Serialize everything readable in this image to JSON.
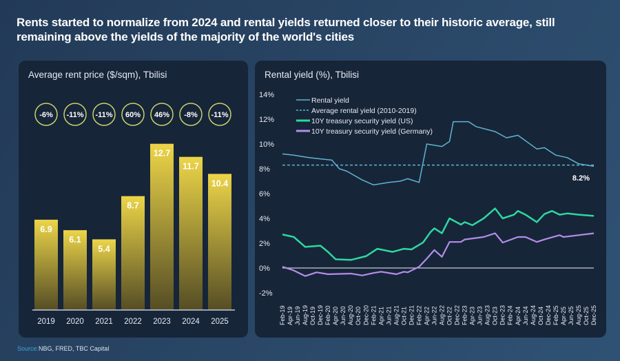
{
  "title": "Rents started to normalize from 2024 and rental yields returned closer to their historic average, still remaining above the yields of the majority of the world's cities",
  "source": {
    "label": "Source:",
    "text": "NBG, FRED, TBC Capital"
  },
  "colors": {
    "bar_top": "#ecd548",
    "bar_bottom": "#554d25",
    "badge_ring": "#c9d26a",
    "rental": "#5fb6d0",
    "us": "#2ed8a0",
    "germany": "#b48ee8",
    "zero_line": "#c8ccd4"
  },
  "chart_data": [
    {
      "type": "bar",
      "title": "Average rent price ($/sqm), Tbilisi",
      "categories": [
        "2019",
        "2020",
        "2021",
        "2022",
        "2023",
        "2024",
        "2025"
      ],
      "values": [
        6.9,
        6.1,
        5.4,
        8.7,
        12.7,
        11.7,
        10.4
      ],
      "value_labels": [
        "6.9",
        "6.1",
        "5.4",
        "8.7",
        "12.7",
        "11.7",
        "10.4"
      ],
      "change_badges": [
        "-6%",
        "-11%",
        "-11%",
        "60%",
        "46%",
        "-8%",
        "-11%"
      ]
    },
    {
      "type": "line",
      "title": "Rental yield (%), Tbilisi",
      "ylim": [
        -2,
        14
      ],
      "yticks": [
        "-2%",
        "0%",
        "2%",
        "4%",
        "6%",
        "8%",
        "10%",
        "12%",
        "14%"
      ],
      "xlim": [
        "2019-02",
        "2025-12"
      ],
      "xticks": [
        "Feb-19",
        "Apr-19",
        "Jun-19",
        "Aug-19",
        "Oct-19",
        "Dec-19",
        "Feb-20",
        "Apr-20",
        "Jun-20",
        "Aug-20",
        "Oct-20",
        "Dec-20",
        "Feb-21",
        "Apr-21",
        "Jun-21",
        "Aug-21",
        "Oct-21",
        "Dec-21",
        "Feb-22",
        "Apr-22",
        "Jun-22",
        "Aug-22",
        "Oct-22",
        "Dec-22",
        "Feb-23",
        "Apr-23",
        "Jun-23",
        "Aug-23",
        "Oct-23",
        "Dec-23",
        "Feb-24",
        "Apr-24",
        "Jun-24",
        "Aug-24",
        "Oct-24",
        "Dec-24",
        "Feb-25",
        "Apr-25",
        "Jun-25",
        "Aug-25",
        "Oct-25",
        "Dec-25"
      ],
      "legend_position": "top-left",
      "end_label": "8.2%",
      "series": [
        {
          "name": "Rental yield",
          "style": "solid",
          "points": [
            [
              "2019-02",
              9.2
            ],
            [
              "2019-05",
              9.1
            ],
            [
              "2019-09",
              8.9
            ],
            [
              "2019-12",
              8.8
            ],
            [
              "2020-03",
              8.7
            ],
            [
              "2020-05",
              8.0
            ],
            [
              "2020-07",
              7.8
            ],
            [
              "2020-11",
              7.1
            ],
            [
              "2021-02",
              6.7
            ],
            [
              "2021-06",
              6.9
            ],
            [
              "2021-09",
              7.0
            ],
            [
              "2021-11",
              7.2
            ],
            [
              "2022-02",
              6.9
            ],
            [
              "2022-04",
              10.0
            ],
            [
              "2022-08",
              9.8
            ],
            [
              "2022-10",
              10.2
            ],
            [
              "2022-11",
              11.8
            ],
            [
              "2023-03",
              11.8
            ],
            [
              "2023-05",
              11.4
            ],
            [
              "2023-10",
              11.0
            ],
            [
              "2024-01",
              10.5
            ],
            [
              "2024-04",
              10.7
            ],
            [
              "2024-09",
              9.6
            ],
            [
              "2024-11",
              9.7
            ],
            [
              "2025-02",
              9.1
            ],
            [
              "2025-05",
              8.9
            ],
            [
              "2025-08",
              8.4
            ],
            [
              "2025-12",
              8.2
            ]
          ]
        },
        {
          "name": "Average rental yield (2010-2019)",
          "style": "dashed",
          "points": [
            [
              "2019-02",
              8.3
            ],
            [
              "2025-12",
              8.3
            ]
          ]
        },
        {
          "name": "10Y treasury security yield (US)",
          "style": "solid",
          "points": [
            [
              "2019-02",
              2.7
            ],
            [
              "2019-05",
              2.5
            ],
            [
              "2019-08",
              1.7
            ],
            [
              "2019-12",
              1.8
            ],
            [
              "2020-02",
              1.3
            ],
            [
              "2020-04",
              0.7
            ],
            [
              "2020-08",
              0.65
            ],
            [
              "2020-12",
              0.95
            ],
            [
              "2021-03",
              1.55
            ],
            [
              "2021-07",
              1.3
            ],
            [
              "2021-10",
              1.55
            ],
            [
              "2021-12",
              1.5
            ],
            [
              "2022-03",
              2.05
            ],
            [
              "2022-05",
              2.9
            ],
            [
              "2022-06",
              3.2
            ],
            [
              "2022-08",
              2.8
            ],
            [
              "2022-10",
              4.0
            ],
            [
              "2023-01",
              3.5
            ],
            [
              "2023-02",
              3.7
            ],
            [
              "2023-04",
              3.45
            ],
            [
              "2023-07",
              4.0
            ],
            [
              "2023-10",
              4.8
            ],
            [
              "2023-12",
              4.0
            ],
            [
              "2024-03",
              4.3
            ],
            [
              "2024-04",
              4.6
            ],
            [
              "2024-06",
              4.3
            ],
            [
              "2024-09",
              3.7
            ],
            [
              "2024-11",
              4.35
            ],
            [
              "2025-01",
              4.6
            ],
            [
              "2025-03",
              4.3
            ],
            [
              "2025-05",
              4.4
            ],
            [
              "2025-08",
              4.3
            ],
            [
              "2025-12",
              4.2
            ]
          ]
        },
        {
          "name": "10Y treasury security yield (Germany)",
          "style": "solid",
          "points": [
            [
              "2019-02",
              0.1
            ],
            [
              "2019-05",
              -0.2
            ],
            [
              "2019-08",
              -0.65
            ],
            [
              "2019-11",
              -0.35
            ],
            [
              "2020-02",
              -0.5
            ],
            [
              "2020-08",
              -0.45
            ],
            [
              "2020-11",
              -0.6
            ],
            [
              "2021-02",
              -0.4
            ],
            [
              "2021-04",
              -0.3
            ],
            [
              "2021-08",
              -0.5
            ],
            [
              "2021-10",
              -0.3
            ],
            [
              "2021-11",
              -0.35
            ],
            [
              "2022-02",
              0.1
            ],
            [
              "2022-04",
              0.75
            ],
            [
              "2022-06",
              1.45
            ],
            [
              "2022-08",
              0.9
            ],
            [
              "2022-10",
              2.1
            ],
            [
              "2023-01",
              2.1
            ],
            [
              "2023-02",
              2.3
            ],
            [
              "2023-07",
              2.5
            ],
            [
              "2023-10",
              2.8
            ],
            [
              "2023-12",
              2.05
            ],
            [
              "2024-04",
              2.5
            ],
            [
              "2024-06",
              2.5
            ],
            [
              "2024-09",
              2.1
            ],
            [
              "2024-11",
              2.3
            ],
            [
              "2025-03",
              2.65
            ],
            [
              "2025-04",
              2.5
            ],
            [
              "2025-08",
              2.65
            ],
            [
              "2025-12",
              2.8
            ]
          ]
        }
      ]
    }
  ]
}
